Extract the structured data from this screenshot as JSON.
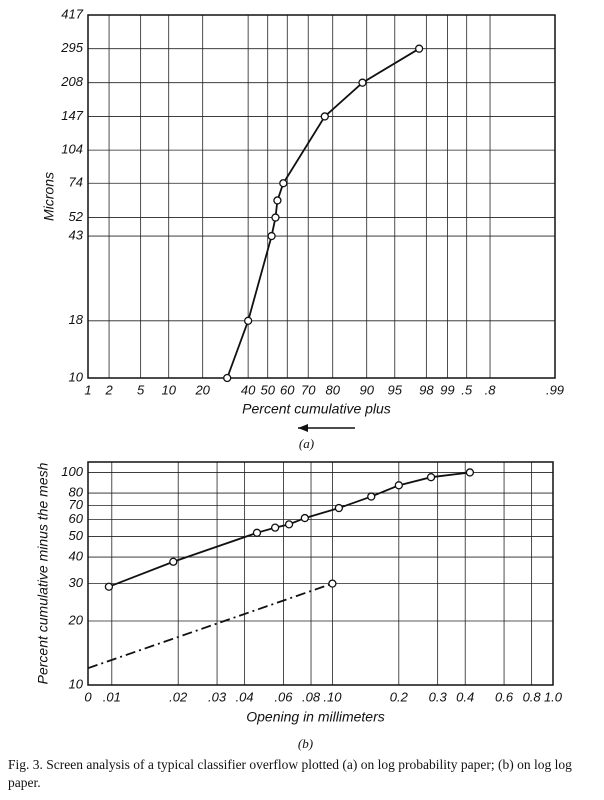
{
  "chart_data": [
    {
      "type": "line",
      "panel_label": "(a)",
      "y_label": "Microns",
      "x_label": "Percent cumulative plus",
      "x_scale": "probability",
      "y_scale": "log",
      "grid": true,
      "marker": "circle",
      "color": "#111111",
      "x": [
        30,
        40,
        52,
        54,
        55,
        58,
        77,
        89,
        97.5
      ],
      "values": [
        10,
        18,
        43,
        52,
        62,
        74,
        147,
        208,
        295
      ],
      "xlim": [
        1,
        99.99
      ],
      "ylim": [
        10,
        417
      ],
      "xticks": [
        1,
        2,
        5,
        10,
        20,
        40,
        50,
        60,
        70,
        80,
        90,
        95,
        98,
        99,
        {
          "value": 99.5,
          "label": ".5"
        },
        {
          "value": 99.8,
          "label": ".8"
        },
        {
          "value": 99.99,
          "label": ".99"
        }
      ],
      "yticks": [
        10,
        18,
        43,
        52,
        74,
        104,
        147,
        208,
        295,
        417
      ]
    },
    {
      "type": "line",
      "panel_label": "(b)",
      "y_label": "Percent cumulative minus the mesh",
      "x_label": "Opening in millimeters",
      "x_scale": "log",
      "y_scale": "log",
      "grid": true,
      "series": [
        {
          "color": "#111111",
          "line_style": "solid",
          "marker": "circle",
          "x": [
            0.0097,
            0.019,
            0.0455,
            0.055,
            0.0636,
            0.075,
            0.107,
            0.15,
            0.2,
            0.28,
            0.42
          ],
          "values": [
            29,
            38,
            52,
            55,
            57,
            61,
            68,
            77,
            87,
            95,
            100
          ]
        },
        {
          "color": "#111111",
          "line_style": "dash-dot",
          "marker": "end",
          "x": [
            0.0078,
            0.1
          ],
          "values": [
            12,
            30
          ]
        }
      ],
      "xlim": [
        0.0078,
        1
      ],
      "ylim": [
        10,
        112
      ],
      "xticks": [
        {
          "value": 0.0078,
          "label": "0"
        },
        {
          "value": 0.01,
          "label": ".01"
        },
        {
          "value": 0.02,
          "label": ".02"
        },
        {
          "value": 0.03,
          "label": ".03"
        },
        {
          "value": 0.04,
          "label": ".04"
        },
        {
          "value": 0.06,
          "label": ".06"
        },
        {
          "value": 0.08,
          "label": ".08"
        },
        {
          "value": 0.1,
          "label": ".10"
        },
        0.2,
        0.3,
        0.4,
        0.6,
        0.8,
        {
          "value": 1,
          "label": "1.0"
        }
      ],
      "yticks": [
        10,
        20,
        30,
        40,
        50,
        60,
        70,
        80,
        100
      ]
    }
  ],
  "caption": "Fig. 3. Screen analysis of a typical classifier overflow plotted (a) on log probability paper; (b) on log log paper."
}
